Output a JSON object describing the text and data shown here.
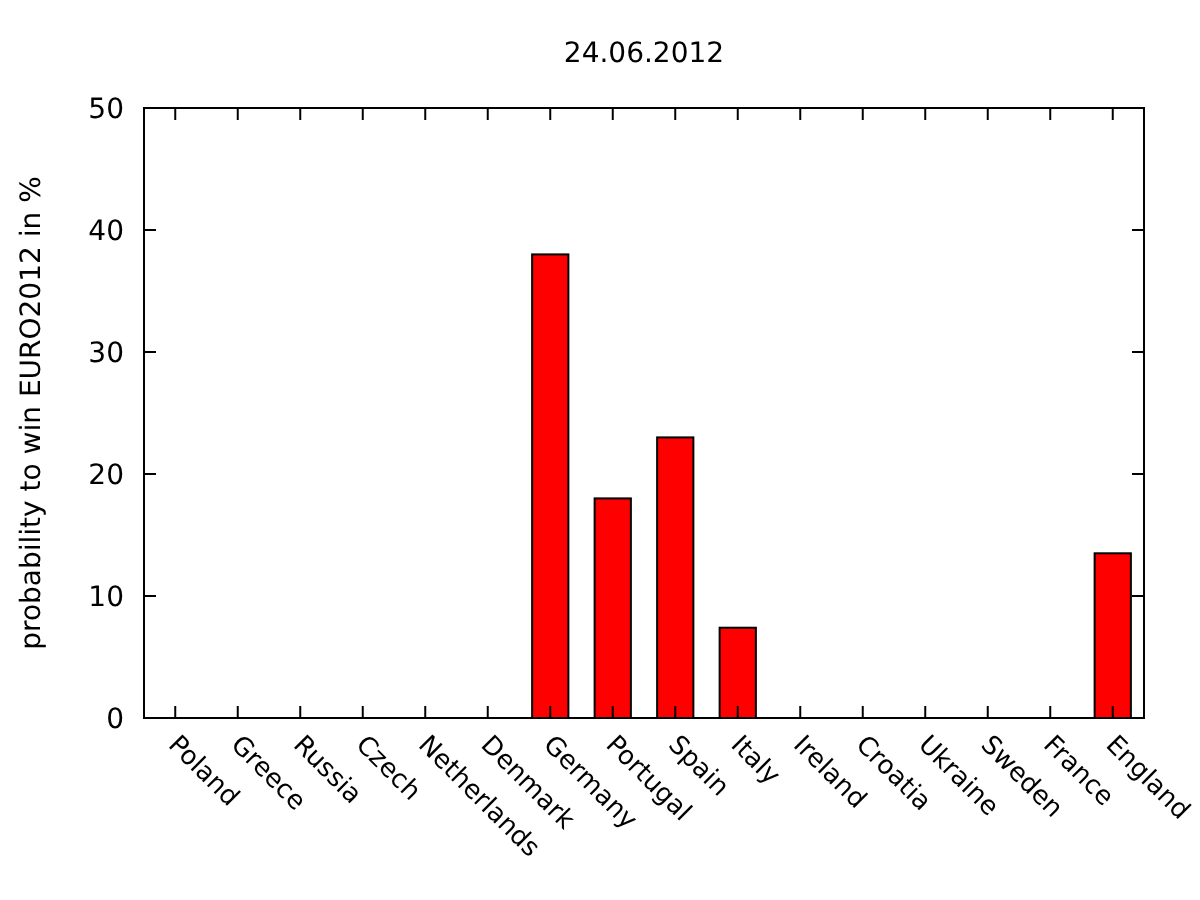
{
  "chart_data": {
    "type": "bar",
    "title": "24.06.2012",
    "ylabel": "probability to win EURO2012 in %",
    "categories": [
      "Poland",
      "Greece",
      "Russia",
      "Czech",
      "Netherlands",
      "Denmark",
      "Germany",
      "Portugal",
      "Spain",
      "Italy",
      "Ireland",
      "Croatia",
      "Ukraine",
      "Sweden",
      "France",
      "England"
    ],
    "values": [
      0,
      0,
      0,
      0,
      0,
      0,
      38,
      18,
      23,
      7.4,
      0,
      0,
      0,
      0,
      0,
      13.5
    ],
    "color": "#ff0000",
    "ylim": [
      0,
      50
    ],
    "yticks": [
      0,
      10,
      20,
      30,
      40,
      50
    ],
    "grid": false
  }
}
